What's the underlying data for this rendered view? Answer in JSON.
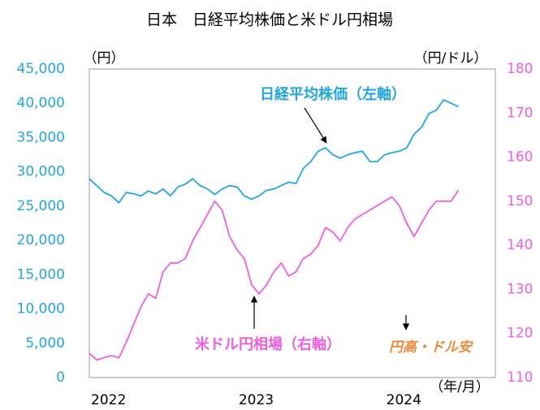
{
  "chart_data": {
    "type": "line",
    "title": "日本　日経平均株価と米ドル円相場",
    "y_label": "（円）",
    "y2_label": "（円/ドル）",
    "x_label": "（年/月）",
    "annotations": [
      "円高・ドル安"
    ],
    "x": [
      2021.87,
      2021.92,
      2021.97,
      2022.02,
      2022.07,
      2022.12,
      2022.17,
      2022.22,
      2022.27,
      2022.32,
      2022.37,
      2022.42,
      2022.47,
      2022.52,
      2022.57,
      2022.62,
      2022.67,
      2022.72,
      2022.77,
      2022.82,
      2022.87,
      2022.92,
      2022.97,
      2023.02,
      2023.07,
      2023.12,
      2023.17,
      2023.22,
      2023.27,
      2023.32,
      2023.37,
      2023.42,
      2023.47,
      2023.52,
      2023.57,
      2023.62,
      2023.67,
      2023.72,
      2023.77,
      2023.82,
      2023.87,
      2023.92,
      2023.97,
      2024.02,
      2024.07,
      2024.12,
      2024.17,
      2024.22,
      2024.27,
      2024.32,
      2024.37
    ],
    "xlim": [
      2021.87,
      2024.62
    ],
    "xticks": [
      2022,
      2023,
      2024
    ],
    "ylim": [
      0,
      45000
    ],
    "yticks": [
      0,
      {
        "value": 5000,
        "label": "5,000"
      },
      {
        "value": 10000,
        "label": "10,000"
      },
      {
        "value": 15000,
        "label": "15,000"
      },
      {
        "value": 20000,
        "label": "20,000"
      },
      {
        "value": 25000,
        "label": "25,000"
      },
      {
        "value": 30000,
        "label": "30,000"
      },
      {
        "value": 35000,
        "label": "35,000"
      },
      {
        "value": 40000,
        "label": "40,000"
      },
      {
        "value": 45000,
        "label": "45,000"
      }
    ],
    "y2lim": [
      110,
      180
    ],
    "y2ticks": [
      110,
      120,
      130,
      140,
      150,
      160,
      170,
      180
    ],
    "series": [
      {
        "name": "日経平均株価（左軸）",
        "color": "#22a6e0",
        "values": [
          29000,
          28000,
          27000,
          26500,
          25500,
          27000,
          26800,
          26500,
          27200,
          26800,
          27500,
          26500,
          27800,
          28200,
          29000,
          28000,
          27500,
          26700,
          27500,
          28000,
          27800,
          26500,
          26000,
          26500,
          27300,
          27500,
          28000,
          28500,
          28300,
          30500,
          31500,
          33000,
          33500,
          32500,
          32000,
          32500,
          32800,
          33000,
          31500,
          31500,
          32500,
          32800,
          33000,
          33500,
          35500,
          36500,
          38500,
          39000,
          40500,
          40000,
          39500
        ]
      },
      {
        "name": "米ドル円相場（右軸）",
        "color": "#ee5fe0",
        "axis": "y2",
        "values": [
          115.5,
          114,
          114.5,
          115,
          114.5,
          118,
          122,
          126,
          129,
          128,
          134,
          136,
          136,
          137,
          141,
          144,
          147,
          150,
          148,
          142,
          139,
          137,
          131,
          129,
          131,
          134,
          136,
          133,
          134,
          137,
          138,
          140,
          144,
          143,
          141,
          144,
          146,
          147,
          148,
          149,
          150,
          151,
          149,
          145,
          142,
          145,
          148,
          150,
          150,
          150,
          152.5
        ]
      }
    ]
  }
}
